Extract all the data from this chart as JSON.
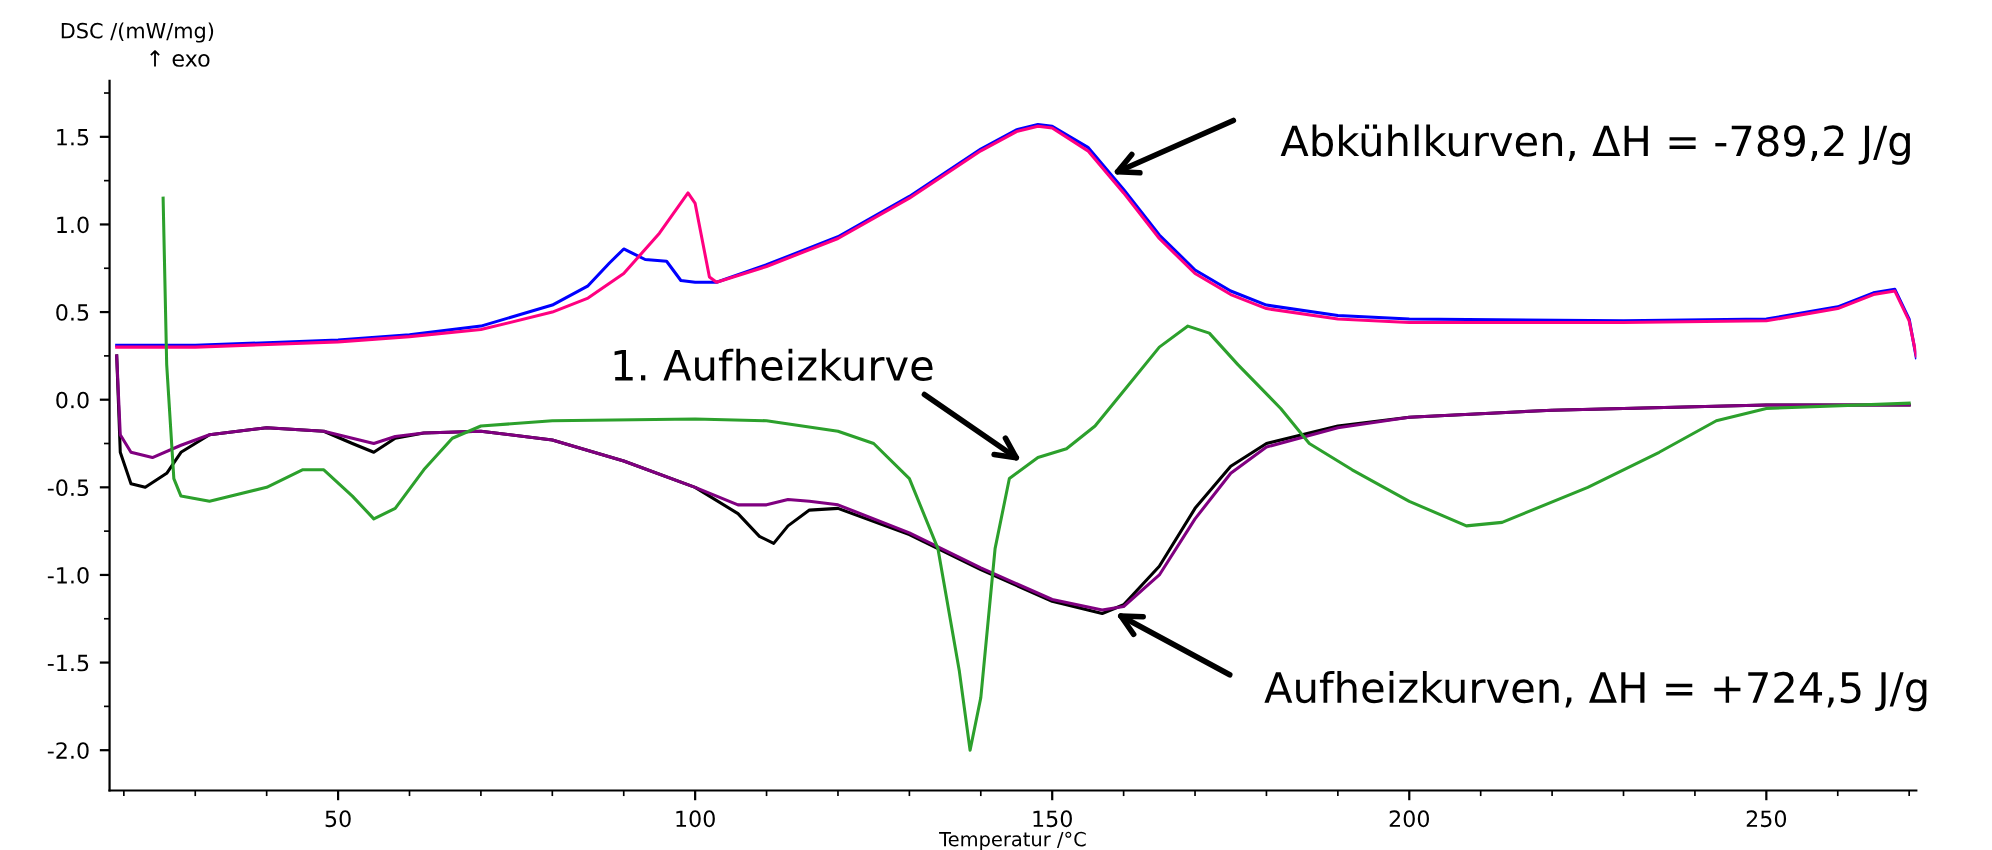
{
  "chart_data": {
    "type": "line",
    "xlabel": "Temperatur /°C",
    "ylabel": "DSC /(mW/mg)",
    "xlim": [
      18,
      271
    ],
    "ylim": [
      -2.23,
      1.82
    ],
    "xticks": [
      50,
      100,
      150,
      200,
      250
    ],
    "yticks": [
      {
        "value": -2,
        "label": "-2.0"
      },
      -1.5,
      {
        "value": -1,
        "label": "-1.0"
      },
      -0.5,
      {
        "value": 0,
        "label": "0.0"
      },
      0.5,
      {
        "value": 1,
        "label": "1.0"
      },
      1.5
    ],
    "grid": false,
    "marker": "none",
    "line_style": "solid",
    "series": [
      {
        "color": "#0000ff",
        "x": [
          19,
          30,
          50,
          60,
          70,
          80,
          85,
          88,
          90,
          93,
          96,
          98,
          100,
          103,
          110,
          120,
          130,
          140,
          145,
          148,
          150,
          155,
          160,
          165,
          170,
          175,
          180,
          190,
          200,
          230,
          250,
          260,
          265,
          268,
          270,
          271
        ],
        "values": [
          0.31,
          0.31,
          0.34,
          0.37,
          0.42,
          0.54,
          0.65,
          0.78,
          0.86,
          0.8,
          0.79,
          0.68,
          0.67,
          0.67,
          0.77,
          0.93,
          1.16,
          1.43,
          1.54,
          1.57,
          1.56,
          1.44,
          1.2,
          0.94,
          0.74,
          0.62,
          0.54,
          0.48,
          0.46,
          0.45,
          0.46,
          0.53,
          0.61,
          0.63,
          0.46,
          0.24
        ]
      },
      {
        "color": "#ff0080",
        "x": [
          19,
          30,
          50,
          60,
          70,
          80,
          85,
          90,
          95,
          99,
          100,
          102,
          103,
          110,
          120,
          130,
          140,
          145,
          148,
          150,
          155,
          160,
          165,
          170,
          175,
          180,
          190,
          200,
          230,
          250,
          260,
          265,
          268,
          270,
          271
        ],
        "values": [
          0.3,
          0.3,
          0.33,
          0.36,
          0.4,
          0.5,
          0.58,
          0.72,
          0.95,
          1.18,
          1.12,
          0.7,
          0.67,
          0.76,
          0.92,
          1.15,
          1.42,
          1.53,
          1.56,
          1.55,
          1.42,
          1.18,
          0.92,
          0.72,
          0.6,
          0.52,
          0.46,
          0.44,
          0.44,
          0.45,
          0.52,
          0.6,
          0.62,
          0.45,
          0.25
        ]
      },
      {
        "color": "#000000",
        "x": [
          19,
          19.5,
          21,
          23,
          26,
          28,
          32,
          40,
          48,
          52,
          55,
          58,
          62,
          70,
          80,
          90,
          100,
          106,
          109,
          111,
          113,
          116,
          120,
          130,
          140,
          150,
          157,
          160,
          165,
          170,
          175,
          180,
          190,
          200,
          220,
          250,
          270
        ],
        "values": [
          0.25,
          -0.3,
          -0.48,
          -0.5,
          -0.42,
          -0.3,
          -0.2,
          -0.16,
          -0.18,
          -0.25,
          -0.3,
          -0.22,
          -0.19,
          -0.18,
          -0.23,
          -0.35,
          -0.5,
          -0.65,
          -0.78,
          -0.82,
          -0.72,
          -0.63,
          -0.62,
          -0.77,
          -0.97,
          -1.15,
          -1.22,
          -1.17,
          -0.95,
          -0.62,
          -0.38,
          -0.25,
          -0.15,
          -0.1,
          -0.06,
          -0.03,
          -0.03
        ]
      },
      {
        "color": "#800080",
        "x": [
          19,
          19.5,
          21,
          24,
          28,
          32,
          40,
          48,
          52,
          55,
          58,
          62,
          70,
          80,
          90,
          100,
          106,
          110,
          113,
          116,
          120,
          130,
          140,
          150,
          157,
          160,
          165,
          170,
          175,
          180,
          190,
          200,
          220,
          250,
          270
        ],
        "values": [
          0.25,
          -0.2,
          -0.3,
          -0.33,
          -0.26,
          -0.2,
          -0.16,
          -0.18,
          -0.22,
          -0.25,
          -0.21,
          -0.19,
          -0.18,
          -0.23,
          -0.35,
          -0.5,
          -0.6,
          -0.6,
          -0.57,
          -0.58,
          -0.6,
          -0.76,
          -0.96,
          -1.14,
          -1.2,
          -1.18,
          -1.0,
          -0.68,
          -0.42,
          -0.27,
          -0.16,
          -0.1,
          -0.06,
          -0.03,
          -0.03
        ]
      },
      {
        "color": "#2ca02c",
        "x": [
          25.5,
          26,
          27,
          28,
          32,
          40,
          45,
          48,
          52,
          55,
          58,
          62,
          66,
          70,
          80,
          100,
          110,
          120,
          125,
          130,
          134,
          137,
          138.5,
          140,
          142,
          144,
          148,
          152,
          156,
          160,
          165,
          169,
          172,
          176,
          182,
          186,
          192,
          200,
          208,
          213,
          225,
          235,
          243,
          250,
          270
        ],
        "values": [
          1.15,
          0.2,
          -0.45,
          -0.55,
          -0.58,
          -0.5,
          -0.4,
          -0.4,
          -0.55,
          -0.68,
          -0.62,
          -0.4,
          -0.22,
          -0.15,
          -0.12,
          -0.11,
          -0.12,
          -0.18,
          -0.25,
          -0.45,
          -0.85,
          -1.55,
          -2.0,
          -1.7,
          -0.85,
          -0.45,
          -0.33,
          -0.28,
          -0.15,
          0.05,
          0.3,
          0.42,
          0.38,
          0.2,
          -0.05,
          -0.25,
          -0.4,
          -0.58,
          -0.72,
          -0.7,
          -0.5,
          -0.3,
          -0.12,
          -0.05,
          -0.02
        ]
      }
    ],
    "annotations": [
      "↑ exo",
      {
        "text": "Abkühlkurven, ΔH = -789,2 J/g",
        "x": 158,
        "y": 1.28
      },
      {
        "text": "1. Aufheizkurve",
        "x": 146,
        "y": -0.36
      },
      {
        "text": "Aufheizkurven, ΔH = +724,5 J/g",
        "x": 158.5,
        "y": -1.21
      }
    ]
  }
}
